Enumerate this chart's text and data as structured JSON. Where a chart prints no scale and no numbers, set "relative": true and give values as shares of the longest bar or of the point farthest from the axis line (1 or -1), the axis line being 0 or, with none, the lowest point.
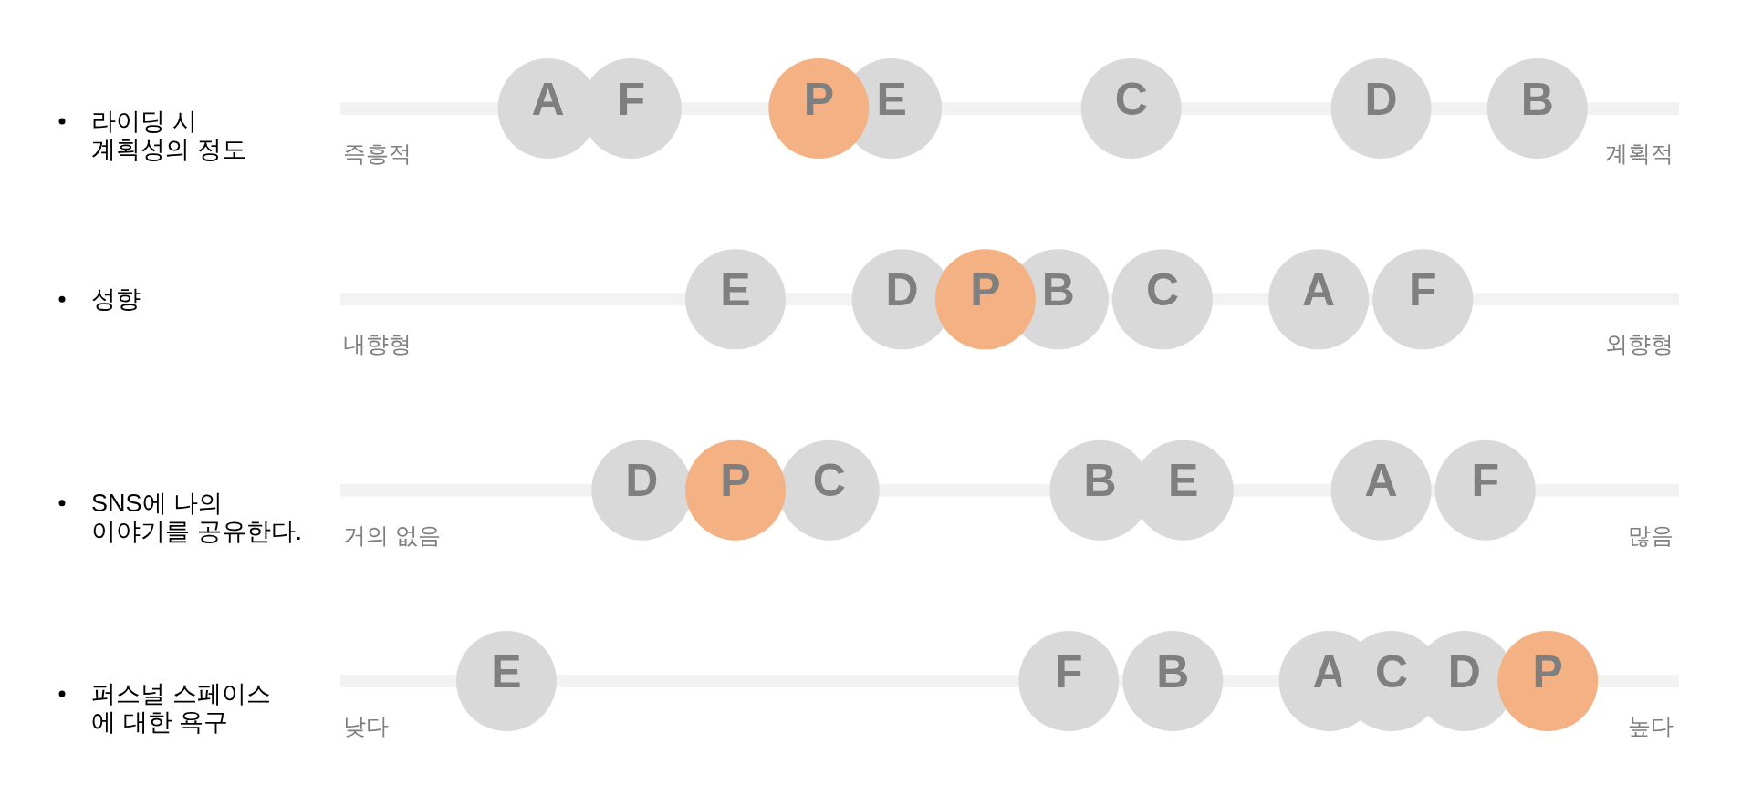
{
  "chart_data": {
    "type": "scatter",
    "orientation": "horizontal",
    "relative": true,
    "marker": "circle",
    "categories": [
      "라이딩 시\n계획성의 정도",
      "성향",
      "SNS에 나의\n이야기를 공유한다.",
      "퍼스널 스페이스\n에 대한 욕구"
    ],
    "annotations": [
      "즉흥적",
      "계획적",
      "내향형",
      "외향형",
      "거의 없음",
      "많음",
      "낮다",
      "높다"
    ],
    "series": [
      {
        "name": "A",
        "color": "#d9d9d9",
        "values": [
          0.04,
          0.78,
          0.84,
          0.79
        ]
      },
      {
        "name": "B",
        "color": "#d9d9d9",
        "values": [
          0.99,
          0.53,
          0.57,
          0.64
        ]
      },
      {
        "name": "C",
        "color": "#d9d9d9",
        "values": [
          0.6,
          0.63,
          0.31,
          0.85
        ]
      },
      {
        "name": "D",
        "color": "#d9d9d9",
        "values": [
          0.84,
          0.38,
          0.13,
          0.92
        ]
      },
      {
        "name": "E",
        "color": "#d9d9d9",
        "values": [
          0.37,
          0.22,
          0.65,
          0
        ]
      },
      {
        "name": "F",
        "color": "#d9d9d9",
        "values": [
          0.12,
          0.88,
          0.94,
          0.54
        ]
      },
      {
        "name": "P",
        "color": "#f4b183",
        "values": [
          0.3,
          0.46,
          0.22,
          1
        ]
      }
    ]
  }
}
